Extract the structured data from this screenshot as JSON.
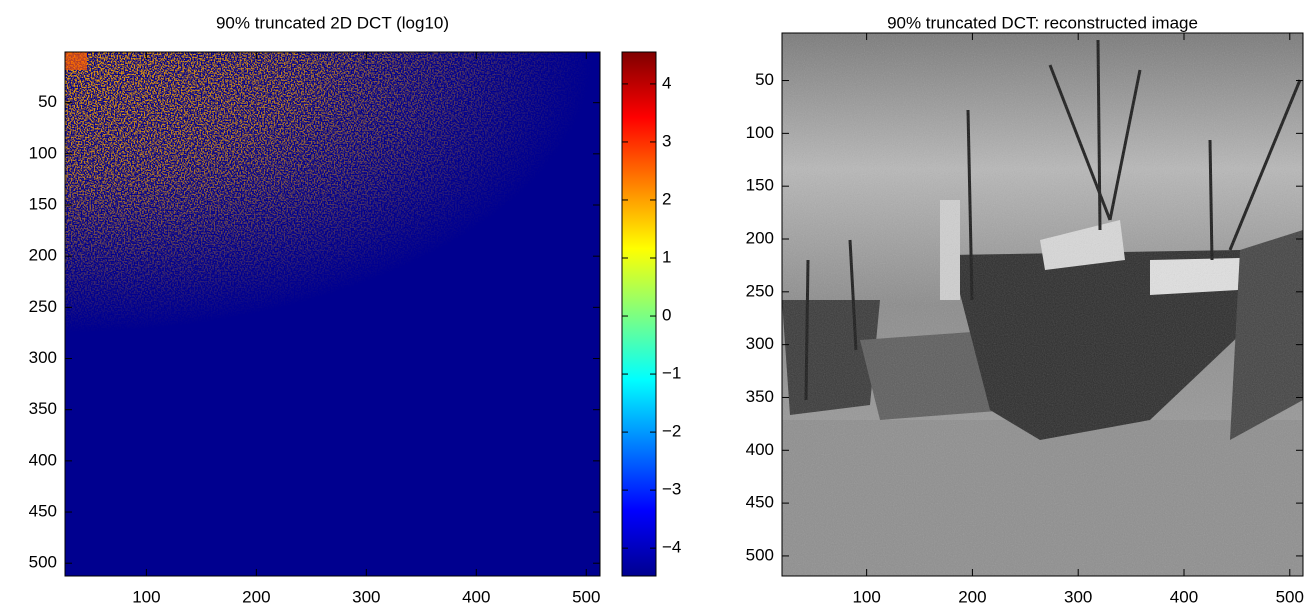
{
  "chart_data": [
    {
      "type": "image",
      "title": "90% truncated 2D DCT (log10)",
      "xlim": [
        26,
        512.5
      ],
      "ylim": [
        0.5,
        512.5
      ],
      "xticks": [
        100,
        200,
        300,
        400,
        500
      ],
      "yticks": [
        50,
        100,
        150,
        200,
        250,
        300,
        350,
        400,
        450,
        500
      ],
      "colorbar": {
        "colormap": "jet",
        "clim": [
          -4.48,
          4.55
        ],
        "ticks": [
          4,
          3,
          2,
          1,
          0,
          {
            "value": -1,
            "label": "−1"
          },
          {
            "value": -2,
            "label": "−2"
          },
          {
            "value": -3,
            "label": "−3"
          },
          {
            "value": -4,
            "label": "−4"
          }
        ]
      }
    },
    {
      "type": "image",
      "title": "90% truncated DCT: reconstructed image",
      "xlim": [
        20,
        512.5
      ],
      "ylim": [
        5,
        519
      ],
      "xticks": [
        100,
        200,
        300,
        400,
        500
      ],
      "yticks": [
        50,
        100,
        150,
        200,
        250,
        300,
        350,
        400,
        450,
        500
      ]
    }
  ]
}
